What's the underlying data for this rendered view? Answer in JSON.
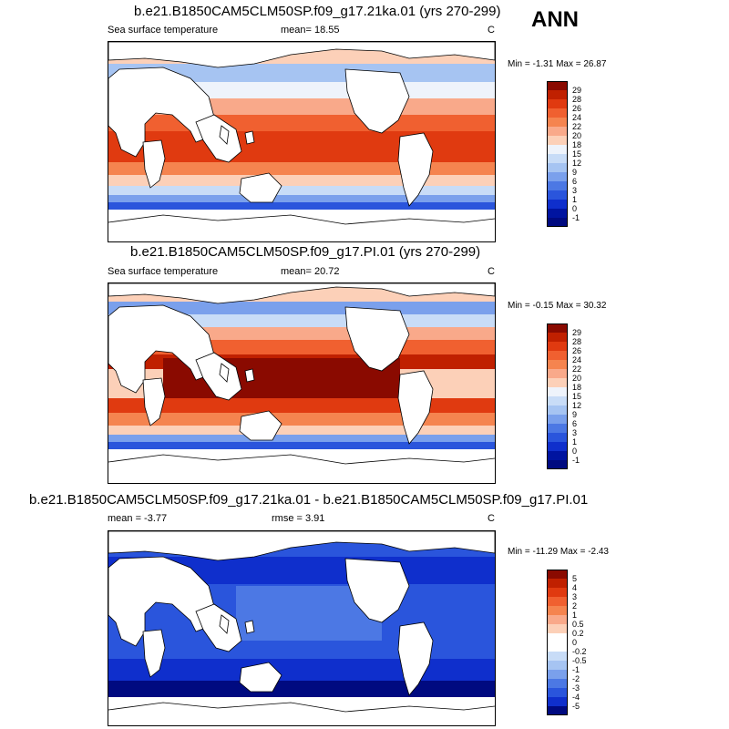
{
  "season": "ANN",
  "panels": [
    {
      "title": "b.e21.B1850CAM5CLM50SP.f09_g17.21ka.01 (yrs 270-299)",
      "left_label": "Sea surface temperature",
      "mid_label": "mean=  18.55",
      "units": "C",
      "minmax": "Min =  -1.31 Max =  26.87",
      "levels": [
        "29",
        "28",
        "26",
        "24",
        "22",
        "20",
        "18",
        "15",
        "12",
        "9",
        "6",
        "3",
        "1",
        "0",
        "-1"
      ],
      "colors": [
        "#8a0a00",
        "#c02000",
        "#e03a10",
        "#f06030",
        "#f5844f",
        "#f9a98a",
        "#fcd0b8",
        "#eef3fb",
        "#c8dcf7",
        "#a6c4f2",
        "#7aa0ec",
        "#4c78e4",
        "#2a55dc",
        "#0f2fcc",
        "#0014a0",
        "#000a80"
      ]
    },
    {
      "title": "b.e21.B1850CAM5CLM50SP.f09_g17.PI.01 (yrs 270-299)",
      "left_label": "Sea surface temperature",
      "mid_label": "mean=  20.72",
      "units": "C",
      "minmax": "Min =  -0.15 Max =  30.32",
      "levels": [
        "29",
        "28",
        "26",
        "24",
        "22",
        "20",
        "18",
        "15",
        "12",
        "9",
        "6",
        "3",
        "1",
        "0",
        "-1"
      ],
      "colors": [
        "#8a0a00",
        "#c02000",
        "#e03a10",
        "#f06030",
        "#f5844f",
        "#f9a98a",
        "#fcd0b8",
        "#eef3fb",
        "#c8dcf7",
        "#a6c4f2",
        "#7aa0ec",
        "#4c78e4",
        "#2a55dc",
        "#0f2fcc",
        "#0014a0",
        "#000a80"
      ]
    },
    {
      "title": "b.e21.B1850CAM5CLM50SP.f09_g17.21ka.01 - b.e21.B1850CAM5CLM50SP.f09_g17.PI.01",
      "left_label": "mean =  -3.77",
      "mid_label": "rmse =   3.91",
      "units": "C",
      "minmax": "Min = -11.29 Max =  -2.43",
      "levels": [
        "5",
        "4",
        "3",
        "2",
        "1",
        "0.5",
        "0.2",
        "0",
        "-0.2",
        "-0.5",
        "-1",
        "-2",
        "-3",
        "-4",
        "-5"
      ],
      "colors": [
        "#8a0a00",
        "#c02000",
        "#e03a10",
        "#f06030",
        "#f5844f",
        "#f9a98a",
        "#fcd0b8",
        "#ffffff",
        "#ffffff",
        "#c8dcf7",
        "#a6c4f2",
        "#7aa0ec",
        "#4c78e4",
        "#2a55dc",
        "#0f2fcc",
        "#000a80"
      ]
    }
  ]
}
